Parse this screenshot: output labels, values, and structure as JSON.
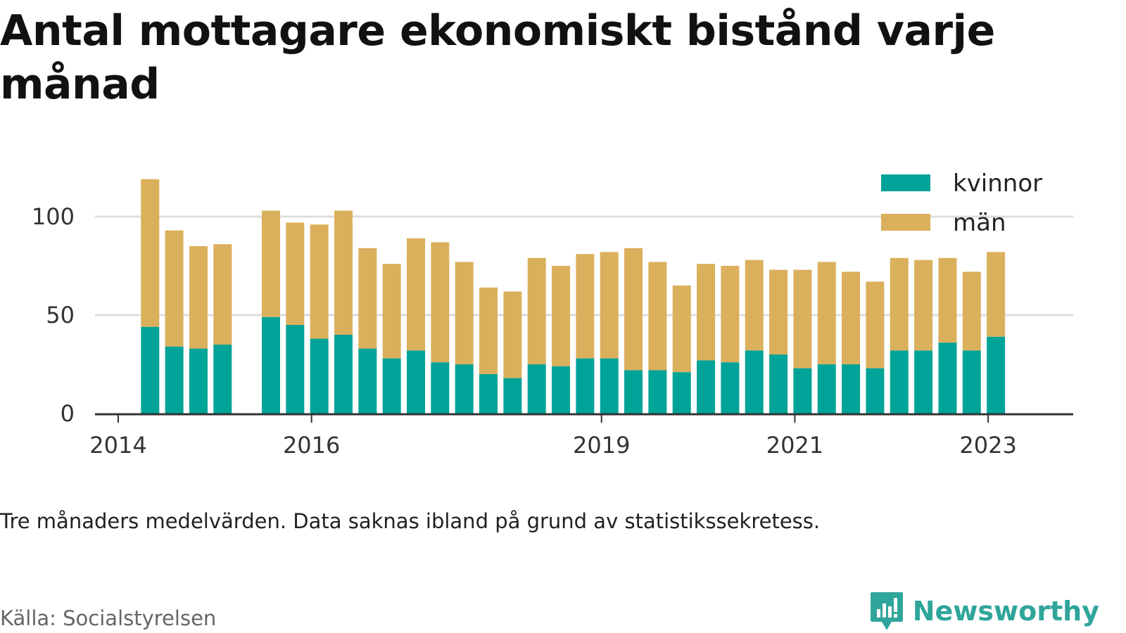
{
  "title": "Antal mottagare ekonomiskt bistånd varje månad",
  "note": "Tre månaders medelvärden. Data saknas ibland på grund av statistikssekretess.",
  "source": "Källa: Socialstyrelsen",
  "brand": {
    "name": "Newsworthy",
    "logo_icon": "newsworthy-chart-bubble-icon"
  },
  "colors": {
    "kvinnor": "#00a398",
    "man": "#dbb05c",
    "grid": "#dddddd",
    "axis": "#333333"
  },
  "chart_data": {
    "type": "bar",
    "stacked": true,
    "title": "Antal mottagare ekonomiskt bistånd varje månad",
    "xlabel": "",
    "ylabel": "",
    "ylim": [
      0,
      120
    ],
    "yticks": [
      0,
      50,
      100
    ],
    "grid": true,
    "legend_position": "top-right",
    "xticks": [
      {
        "label": "2014",
        "x": 2014.0
      },
      {
        "label": "2016",
        "x": 2016.0
      },
      {
        "label": "2019",
        "x": 2019.0
      },
      {
        "label": "2021",
        "x": 2021.0
      },
      {
        "label": "2023",
        "x": 2023.0
      }
    ],
    "x": [
      2014.33,
      2014.58,
      2014.83,
      2015.08,
      2015.58,
      2015.83,
      2016.08,
      2016.33,
      2016.58,
      2016.83,
      2017.08,
      2017.33,
      2017.58,
      2017.83,
      2018.08,
      2018.33,
      2018.58,
      2018.83,
      2019.08,
      2019.33,
      2019.58,
      2019.83,
      2020.08,
      2020.33,
      2020.58,
      2020.83,
      2021.08,
      2021.33,
      2021.58,
      2021.83,
      2022.08,
      2022.33,
      2022.58,
      2022.83,
      2023.08
    ],
    "series": [
      {
        "name": "kvinnor",
        "values": [
          44,
          34,
          33,
          35,
          49,
          45,
          38,
          40,
          33,
          28,
          32,
          26,
          25,
          20,
          18,
          25,
          24,
          28,
          28,
          22,
          22,
          21,
          27,
          26,
          32,
          30,
          23,
          25,
          25,
          23,
          32,
          32,
          36,
          32,
          39
        ]
      },
      {
        "name": "män",
        "values": [
          75,
          59,
          52,
          51,
          54,
          52,
          58,
          63,
          51,
          48,
          57,
          61,
          52,
          44,
          44,
          54,
          51,
          53,
          54,
          62,
          55,
          44,
          49,
          49,
          46,
          43,
          50,
          52,
          47,
          44,
          47,
          46,
          43,
          40,
          43
        ]
      }
    ]
  }
}
